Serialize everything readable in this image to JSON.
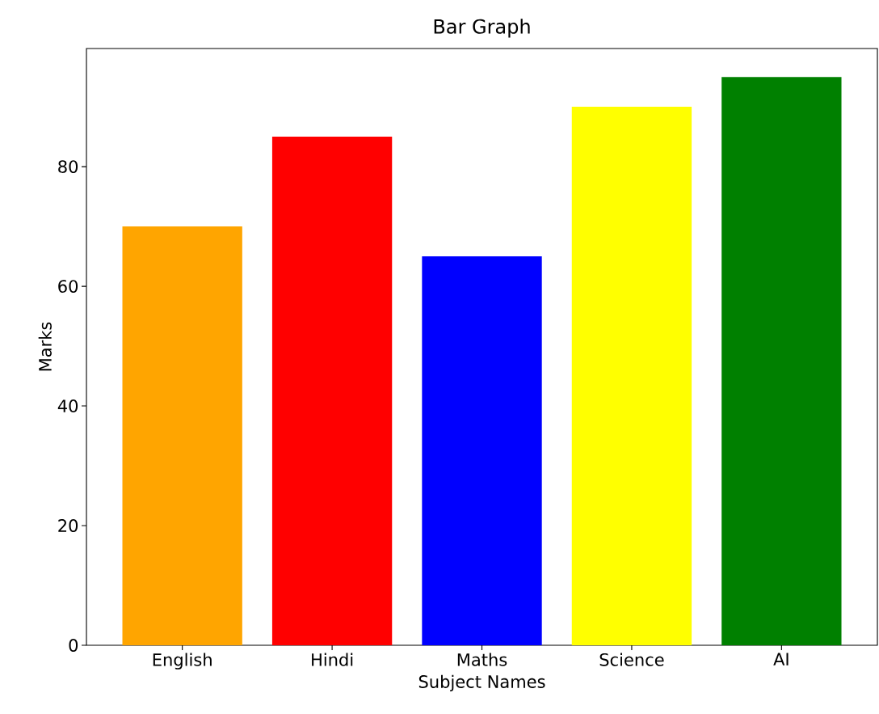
{
  "chart_data": {
    "type": "bar",
    "title": "Bar Graph",
    "xlabel": "Subject Names",
    "ylabel": "Marks",
    "categories": [
      "English",
      "Hindi",
      "Maths",
      "Science",
      "AI"
    ],
    "values": [
      70,
      85,
      65,
      90,
      95
    ],
    "colors": [
      "#ffa500",
      "#ff0000",
      "#0000ff",
      "#ffff00",
      "#008000"
    ],
    "ylim": [
      0,
      99.75
    ],
    "yticks": [
      0,
      20,
      40,
      60,
      80
    ]
  }
}
